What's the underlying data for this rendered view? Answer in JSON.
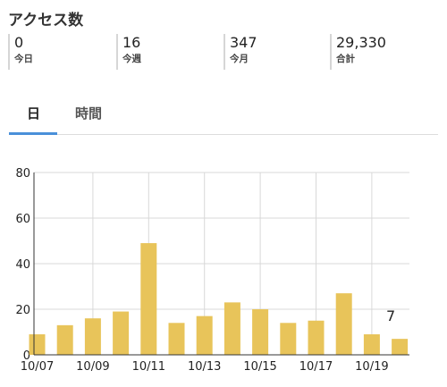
{
  "header": {
    "title": "アクセス数"
  },
  "stats": [
    {
      "value": "0",
      "label": "今日"
    },
    {
      "value": "16",
      "label": "今週"
    },
    {
      "value": "347",
      "label": "今月"
    },
    {
      "value": "29,330",
      "label": "合計"
    }
  ],
  "tabs": [
    {
      "label": "日",
      "active": true
    },
    {
      "label": "時間",
      "active": false
    }
  ],
  "chart_data": {
    "type": "bar",
    "categories": [
      "10/07",
      "10/08",
      "10/09",
      "10/10",
      "10/11",
      "10/12",
      "10/13",
      "10/14",
      "10/15",
      "10/16",
      "10/17",
      "10/18",
      "10/19",
      "10/20"
    ],
    "x_tick_labels": [
      "10/07",
      "10/09",
      "10/11",
      "10/13",
      "10/15",
      "10/17",
      "10/19"
    ],
    "values": [
      9,
      13,
      16,
      19,
      49,
      14,
      17,
      23,
      20,
      14,
      15,
      27,
      9,
      7
    ],
    "ylim": [
      0,
      80
    ],
    "yticks": [
      0,
      20,
      40,
      60,
      80
    ],
    "grid": true,
    "annotation": {
      "category": "10/20",
      "text": "7"
    },
    "colors": {
      "bar": "#e8c45a",
      "grid": "#d8d8d8",
      "axis": "#333333"
    }
  }
}
